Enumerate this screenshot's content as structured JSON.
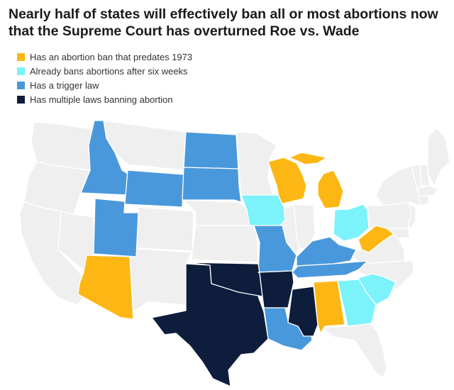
{
  "title": "Nearly half of states will effectively ban all or most abortions now that the Supreme Court has overturned Roe vs. Wade",
  "legend": [
    {
      "key": "pre1973",
      "label": "Has an abortion ban that predates 1973",
      "color": "#FDB714"
    },
    {
      "key": "sixweeks",
      "label": "Already bans abortions after six weeks",
      "color": "#7CF2FA"
    },
    {
      "key": "trigger",
      "label": "Has a trigger law",
      "color": "#4A98DC"
    },
    {
      "key": "multiple",
      "label": "Has multiple laws banning abortion",
      "color": "#0E1D3C"
    }
  ],
  "colors": {
    "none": "#EFEFEF",
    "background": "#FFFFFF"
  },
  "states": {
    "WA": "none",
    "OR": "none",
    "CA": "none",
    "NV": "none",
    "MT": "none",
    "CO": "none",
    "NM": "none",
    "NE": "none",
    "KS": "none",
    "MN": "none",
    "IL": "none",
    "IN": "none",
    "NY": "none",
    "PA": "none",
    "VA": "none",
    "NC": "none",
    "FL": "none",
    "ME": "none",
    "VT": "none",
    "NH": "none",
    "MA": "none",
    "CT": "none",
    "NJ": "none",
    "MD": "none",
    "ID": "trigger",
    "WY": "trigger",
    "UT": "trigger",
    "ND": "trigger",
    "SD": "trigger",
    "MO": "trigger",
    "KY": "trigger",
    "TN": "trigger",
    "LA": "trigger",
    "AZ": "pre1973",
    "WI": "pre1973",
    "MI": "pre1973",
    "WV": "pre1973",
    "AL": "pre1973",
    "IA": "sixweeks",
    "OH": "sixweeks",
    "GA": "sixweeks",
    "SC": "sixweeks",
    "TX": "multiple",
    "OK": "multiple",
    "AR": "multiple",
    "MS": "multiple"
  }
}
